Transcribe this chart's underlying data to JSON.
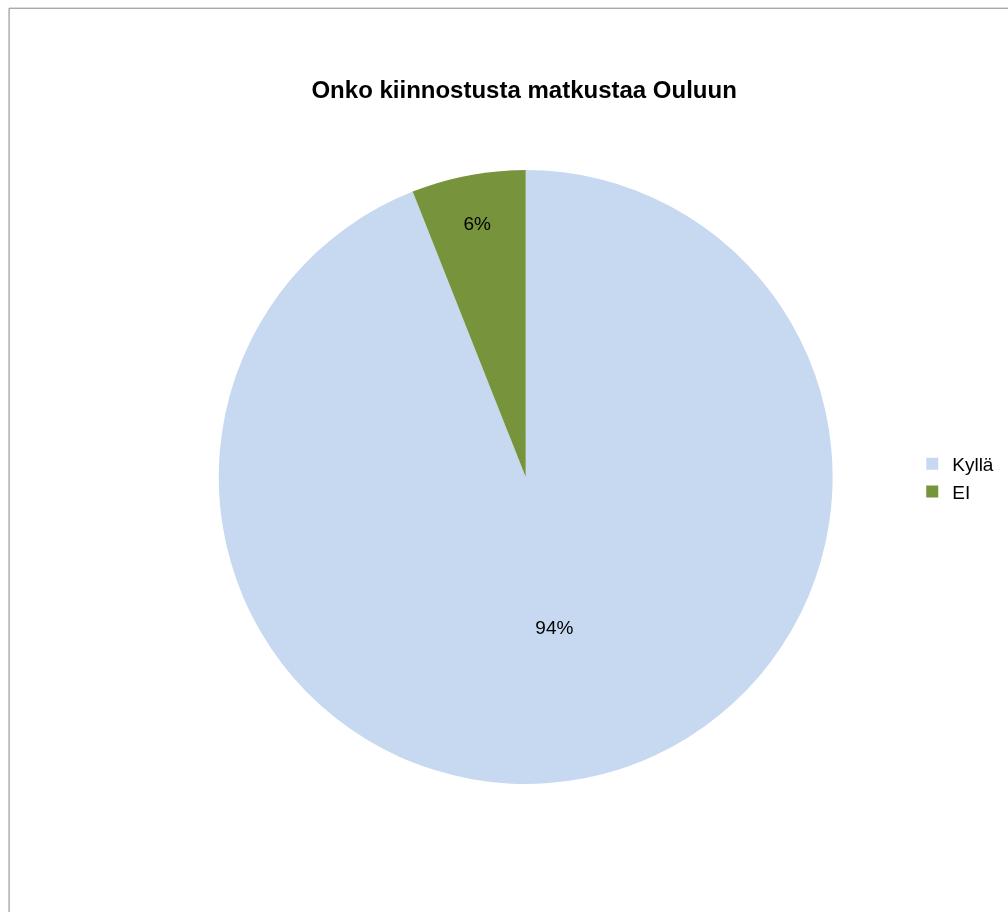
{
  "chart_data": {
    "type": "pie",
    "title": "Onko kiinnostusta matkustaa Ouluun",
    "categories": [
      "Kyllä",
      "EI"
    ],
    "values": [
      94,
      6
    ],
    "colors": [
      "#c6d9f1",
      "#77933c"
    ],
    "value_labels": [
      "94%",
      "6%"
    ],
    "legend": "right"
  }
}
